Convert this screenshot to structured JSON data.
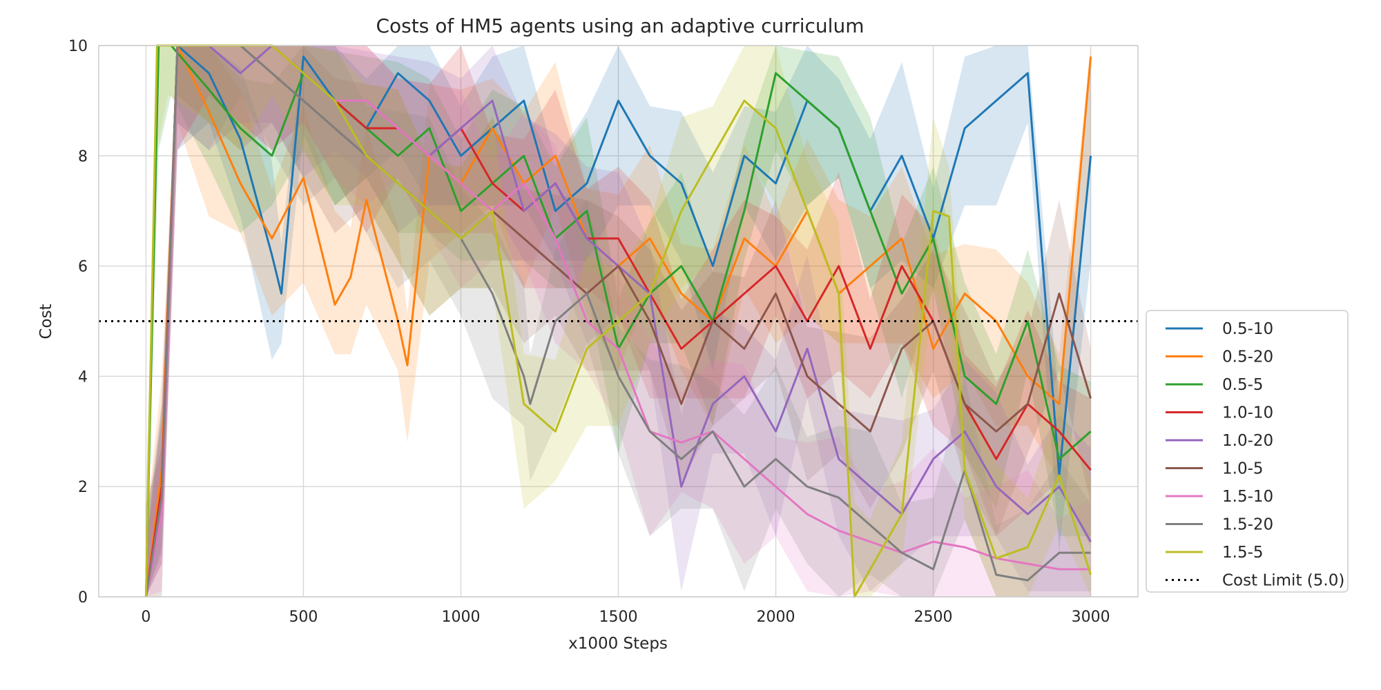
{
  "chart_data": {
    "type": "line",
    "title": "Costs of HM5 agents using an adaptive curriculum",
    "xlabel": "x1000 Steps",
    "ylabel": "Cost",
    "xlim": [
      -150,
      3150
    ],
    "ylim": [
      0,
      10
    ],
    "x_ticks": [
      0,
      500,
      1000,
      1500,
      2000,
      2500,
      3000
    ],
    "y_ticks": [
      0,
      2,
      4,
      6,
      8,
      10
    ],
    "grid": true,
    "legend_position": "right, lower",
    "reference_line": {
      "label": "Cost Limit (5.0)",
      "y": 5.0,
      "style": "dotted",
      "color": "#000000"
    },
    "series": [
      {
        "name": "0.5-10",
        "color": "#1f77b4",
        "x": [
          0,
          50,
          100,
          200,
          300,
          400,
          430,
          500,
          600,
          700,
          800,
          900,
          1000,
          1100,
          1200,
          1300,
          1400,
          1500,
          1600,
          1700,
          1800,
          1900,
          2000,
          2100,
          2200,
          2300,
          2400,
          2500,
          2600,
          2700,
          2800,
          2900,
          3000
        ],
        "y": [
          0,
          2.2,
          10,
          9.5,
          8.3,
          6.2,
          5.5,
          9.8,
          9.0,
          8.5,
          9.5,
          9.0,
          8.0,
          8.5,
          9.0,
          7.0,
          7.5,
          9.0,
          8.0,
          7.5,
          6.0,
          8.0,
          7.5,
          9.0,
          8.5,
          7.0,
          8.0,
          6.5,
          8.5,
          9.0,
          9.5,
          2.2,
          8.0
        ]
      },
      {
        "name": "0.5-20",
        "color": "#ff7f0e",
        "x": [
          0,
          50,
          100,
          200,
          300,
          400,
          500,
          600,
          650,
          700,
          800,
          830,
          900,
          1000,
          1100,
          1200,
          1300,
          1400,
          1500,
          1600,
          1700,
          1800,
          1900,
          2000,
          2100,
          2200,
          2300,
          2400,
          2500,
          2600,
          2700,
          2800,
          2900,
          3000
        ],
        "y": [
          0,
          2.3,
          10,
          8.8,
          7.5,
          6.5,
          7.6,
          5.3,
          5.8,
          7.2,
          5.0,
          4.2,
          8.0,
          7.5,
          8.5,
          7.5,
          8.0,
          6.5,
          6.0,
          6.5,
          5.5,
          5.0,
          6.5,
          6.0,
          7.0,
          5.5,
          6.0,
          6.5,
          4.5,
          5.5,
          5.0,
          4.0,
          3.5,
          9.8
        ]
      },
      {
        "name": "0.5-5",
        "color": "#2ca02c",
        "x": [
          0,
          40,
          80,
          200,
          300,
          400,
          500,
          600,
          700,
          800,
          900,
          1000,
          1100,
          1200,
          1300,
          1400,
          1500,
          1600,
          1700,
          1800,
          1900,
          2000,
          2100,
          2200,
          2300,
          2400,
          2500,
          2600,
          2700,
          2800,
          2900,
          3000
        ],
        "y": [
          0,
          10,
          10,
          9.2,
          8.5,
          8.0,
          9.5,
          9.0,
          8.5,
          8.0,
          8.5,
          7.0,
          7.5,
          8.0,
          6.5,
          7.0,
          4.5,
          5.5,
          6.0,
          5.0,
          7.0,
          9.5,
          9.0,
          8.5,
          7.0,
          5.5,
          6.5,
          4.0,
          3.5,
          5.0,
          2.5,
          3.0
        ]
      },
      {
        "name": "1.0-10",
        "color": "#d62728",
        "x": [
          0,
          50,
          100,
          200,
          300,
          400,
          500,
          600,
          700,
          800,
          900,
          1000,
          1100,
          1200,
          1300,
          1400,
          1500,
          1600,
          1700,
          1800,
          1900,
          2000,
          2100,
          2200,
          2300,
          2400,
          2500,
          2600,
          2700,
          2800,
          2900,
          3000
        ],
        "y": [
          0,
          2.0,
          10,
          10,
          10,
          10,
          9.5,
          9.0,
          8.5,
          8.5,
          8.0,
          8.5,
          7.5,
          7.0,
          7.5,
          6.5,
          6.5,
          5.5,
          4.5,
          5.0,
          5.5,
          6.0,
          5.0,
          6.0,
          4.5,
          6.0,
          5.0,
          3.5,
          2.5,
          3.5,
          3.0,
          2.3
        ]
      },
      {
        "name": "1.0-20",
        "color": "#9467bd",
        "x": [
          0,
          50,
          100,
          200,
          300,
          400,
          500,
          600,
          700,
          800,
          900,
          1000,
          1100,
          1200,
          1300,
          1400,
          1500,
          1600,
          1700,
          1800,
          1900,
          2000,
          2100,
          2200,
          2300,
          2400,
          2500,
          2600,
          2700,
          2800,
          2900,
          3000
        ],
        "y": [
          0,
          1.5,
          10,
          10,
          9.5,
          10,
          9.5,
          9.0,
          9.0,
          8.5,
          8.0,
          8.5,
          9.0,
          7.0,
          7.5,
          6.5,
          6.0,
          5.5,
          2.0,
          3.5,
          4.0,
          3.0,
          4.5,
          2.5,
          2.0,
          1.5,
          2.5,
          3.0,
          2.0,
          1.5,
          2.0,
          1.0
        ]
      },
      {
        "name": "1.0-5",
        "color": "#8c564b",
        "x": [
          0,
          50,
          100,
          200,
          300,
          400,
          500,
          600,
          700,
          800,
          900,
          1000,
          1100,
          1200,
          1300,
          1400,
          1500,
          1600,
          1700,
          1800,
          1900,
          2000,
          2100,
          2200,
          2300,
          2400,
          2500,
          2600,
          2700,
          2800,
          2900,
          3000
        ],
        "y": [
          0,
          1.8,
          10,
          10,
          10,
          9.5,
          9.0,
          8.5,
          8.0,
          7.5,
          7.0,
          6.5,
          7.0,
          6.5,
          6.0,
          5.5,
          6.0,
          5.0,
          3.5,
          5.0,
          4.5,
          5.5,
          4.0,
          3.5,
          3.0,
          4.5,
          5.0,
          3.5,
          3.0,
          3.5,
          5.5,
          3.6
        ]
      },
      {
        "name": "1.5-10",
        "color": "#e377c2",
        "x": [
          0,
          50,
          100,
          200,
          300,
          400,
          500,
          600,
          700,
          800,
          900,
          1000,
          1100,
          1200,
          1300,
          1400,
          1500,
          1600,
          1700,
          1800,
          1900,
          2000,
          2100,
          2200,
          2300,
          2400,
          2500,
          2600,
          2700,
          2800,
          2900,
          3000
        ],
        "y": [
          0,
          1.5,
          10,
          10,
          10,
          10,
          9.5,
          9.0,
          9.0,
          8.5,
          8.0,
          7.5,
          7.0,
          7.5,
          6.5,
          5.0,
          4.5,
          3.0,
          2.8,
          3.0,
          2.5,
          2.0,
          1.5,
          1.2,
          1.0,
          0.8,
          1.0,
          0.9,
          0.7,
          0.6,
          0.5,
          0.5
        ]
      },
      {
        "name": "1.5-20",
        "color": "#7f7f7f",
        "x": [
          0,
          50,
          100,
          200,
          300,
          400,
          500,
          600,
          700,
          800,
          900,
          1000,
          1100,
          1200,
          1220,
          1300,
          1400,
          1500,
          1600,
          1700,
          1800,
          1900,
          2000,
          2100,
          2200,
          2300,
          2400,
          2500,
          2600,
          2700,
          2800,
          2900,
          3000
        ],
        "y": [
          0,
          1.8,
          10,
          10,
          10,
          9.5,
          9.0,
          8.5,
          8.0,
          7.5,
          7.0,
          6.5,
          5.5,
          4.0,
          3.5,
          5.0,
          5.5,
          4.0,
          3.0,
          2.5,
          3.0,
          2.0,
          2.5,
          2.0,
          1.8,
          1.3,
          0.8,
          0.5,
          2.3,
          0.4,
          0.3,
          0.8,
          0.8
        ]
      },
      {
        "name": "1.5-5",
        "color": "#bcbd22",
        "x": [
          0,
          35,
          70,
          200,
          300,
          400,
          500,
          600,
          700,
          800,
          900,
          1000,
          1100,
          1200,
          1300,
          1400,
          1500,
          1600,
          1700,
          1800,
          1900,
          2000,
          2100,
          2200,
          2250,
          2300,
          2400,
          2500,
          2550,
          2600,
          2700,
          2800,
          2900,
          3000
        ],
        "y": [
          0,
          10,
          10,
          10,
          10,
          10,
          9.5,
          9.0,
          8.0,
          7.5,
          7.0,
          6.5,
          7.0,
          3.5,
          3.0,
          4.5,
          5.0,
          5.5,
          7.0,
          8.0,
          9.0,
          8.5,
          7.0,
          5.5,
          0.0,
          0.5,
          1.5,
          7.0,
          6.9,
          2.3,
          0.7,
          0.9,
          2.2,
          0.4
        ]
      }
    ]
  }
}
